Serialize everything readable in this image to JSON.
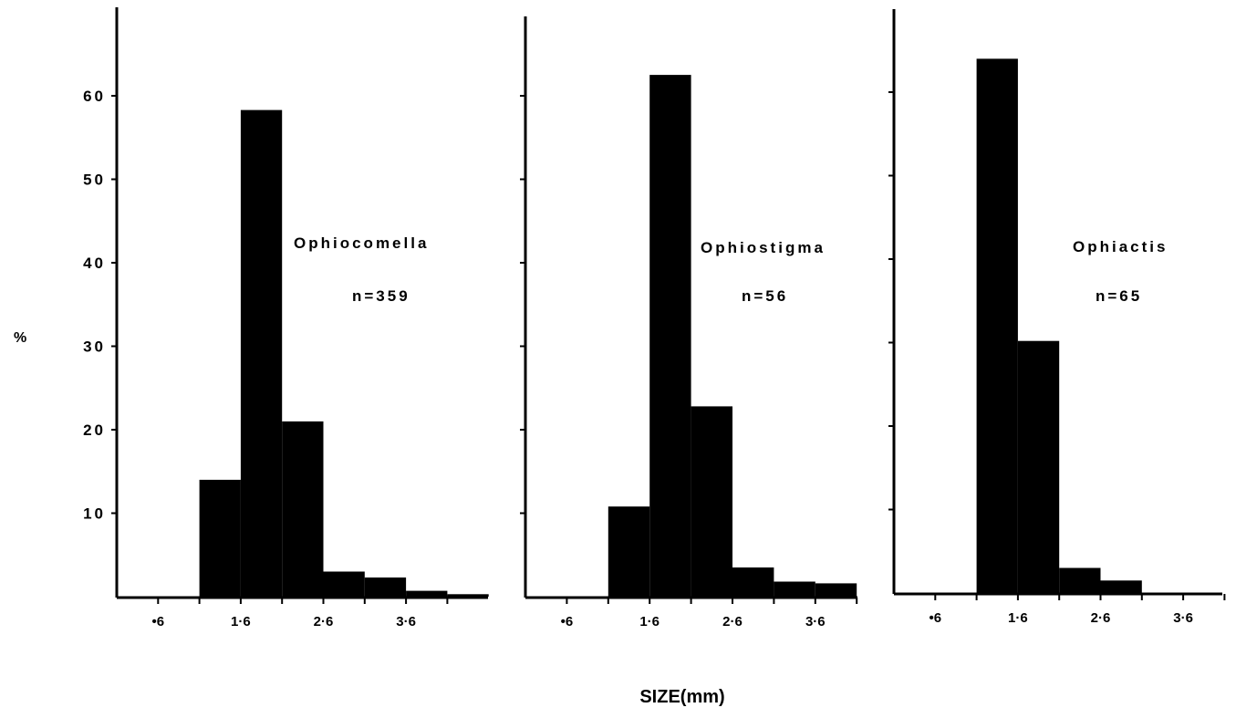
{
  "figure": {
    "ylabel": "%",
    "xlabel": "SIZE(mm)",
    "y_ticks": [
      "10",
      "20",
      "30",
      "40",
      "50",
      "60"
    ],
    "x_tick_labels": [
      "•6",
      "1·6",
      "2·6",
      "3·6"
    ],
    "bar_color": "#000000"
  },
  "chart_data": [
    {
      "type": "bar",
      "title": "Ophiocomella",
      "annotation": "n=359",
      "bin_width": 0.5,
      "bins_left_edge": [
        1.1,
        1.6,
        2.1,
        2.6,
        3.1,
        3.6,
        4.1
      ],
      "values": [
        14,
        58.3,
        21,
        3,
        2.3,
        0.7,
        0.3
      ],
      "xlim": [
        0.1,
        4.5
      ],
      "ylim": [
        0,
        70
      ],
      "x_ticks": [
        0.6,
        1.6,
        2.6,
        3.6
      ]
    },
    {
      "type": "bar",
      "title": "Ophiostigma",
      "annotation": "n=56",
      "bin_width": 0.5,
      "bins_left_edge": [
        1.1,
        1.6,
        2.1,
        2.6,
        3.1,
        3.6
      ],
      "values": [
        10.8,
        62.5,
        22.8,
        3.5,
        1.8,
        1.6
      ],
      "xlim": [
        0.1,
        4.1
      ],
      "ylim": [
        0,
        70
      ],
      "x_ticks": [
        0.6,
        1.6,
        2.6,
        3.6
      ]
    },
    {
      "type": "bar",
      "title": "Ophiactis",
      "annotation": "n=65",
      "bin_width": 0.5,
      "bins_left_edge": [
        1.1,
        1.6,
        2.1,
        2.6
      ],
      "values": [
        64,
        30.2,
        3,
        1.5
      ],
      "xlim": [
        0.1,
        4.3
      ],
      "ylim": [
        0,
        70
      ],
      "x_ticks": [
        0.6,
        1.6,
        2.6,
        3.6
      ]
    }
  ]
}
